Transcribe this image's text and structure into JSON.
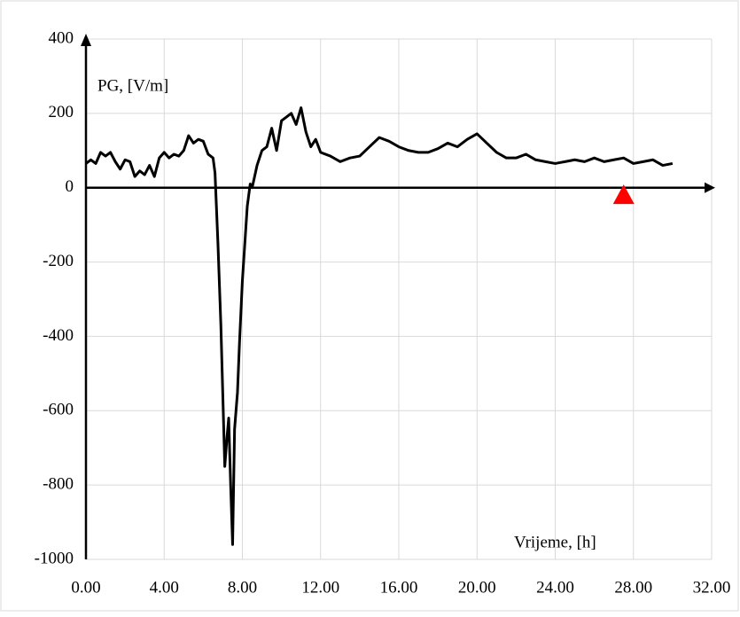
{
  "chart_data": {
    "type": "line",
    "y_label": "PG, [V/m]",
    "x_label": "Vrijeme, [h]",
    "xlim": [
      0,
      32
    ],
    "ylim": [
      -1000,
      400
    ],
    "xticks": [
      {
        "value": 0,
        "label": "0.00"
      },
      {
        "value": 4,
        "label": "4.00"
      },
      {
        "value": 8,
        "label": "8.00"
      },
      {
        "value": 12,
        "label": "12.00"
      },
      {
        "value": 16,
        "label": "16.00"
      },
      {
        "value": 20,
        "label": "20.00"
      },
      {
        "value": 24,
        "label": "24.00"
      },
      {
        "value": 28,
        "label": "28.00"
      },
      {
        "value": 32,
        "label": "32.00"
      }
    ],
    "yticks": [
      400,
      200,
      0,
      -200,
      -400,
      -600,
      -800,
      -1000
    ],
    "grid": true,
    "series": [
      {
        "color": "#000000",
        "x": [
          0,
          0.25,
          0.5,
          0.75,
          1.0,
          1.25,
          1.5,
          1.75,
          2.0,
          2.25,
          2.5,
          2.75,
          3.0,
          3.25,
          3.5,
          3.75,
          4.0,
          4.25,
          4.5,
          4.75,
          5.0,
          5.25,
          5.5,
          5.75,
          6.0,
          6.25,
          6.5,
          6.6,
          6.75,
          6.9,
          7.0,
          7.1,
          7.2,
          7.3,
          7.4,
          7.5,
          7.6,
          7.75,
          7.85,
          8.0,
          8.25,
          8.4,
          8.5,
          8.75,
          9.0,
          9.25,
          9.5,
          9.75,
          10.0,
          10.25,
          10.5,
          10.75,
          11.0,
          11.25,
          11.5,
          11.75,
          12.0,
          12.5,
          13.0,
          13.5,
          14.0,
          14.5,
          15.0,
          15.5,
          16.0,
          16.5,
          17.0,
          17.5,
          18.0,
          18.5,
          19.0,
          19.5,
          20.0,
          20.5,
          21.0,
          21.5,
          22.0,
          22.5,
          23.0,
          23.5,
          24.0,
          24.5,
          25.0,
          25.5,
          26.0,
          26.5,
          27.0,
          27.5,
          28.0,
          28.5,
          29.0,
          29.5,
          30.0
        ],
        "values": [
          65,
          75,
          65,
          95,
          85,
          95,
          70,
          50,
          75,
          70,
          30,
          45,
          35,
          60,
          30,
          80,
          95,
          80,
          90,
          85,
          100,
          140,
          120,
          130,
          125,
          90,
          80,
          40,
          -150,
          -370,
          -560,
          -750,
          -680,
          -620,
          -800,
          -960,
          -650,
          -550,
          -420,
          -250,
          -50,
          10,
          0,
          60,
          100,
          110,
          160,
          100,
          180,
          190,
          200,
          170,
          215,
          150,
          110,
          130,
          95,
          85,
          70,
          80,
          85,
          110,
          135,
          125,
          110,
          100,
          95,
          95,
          105,
          120,
          110,
          130,
          145,
          120,
          95,
          80,
          80,
          90,
          75,
          70,
          65,
          70,
          75,
          70,
          80,
          70,
          75,
          80,
          65,
          70,
          75,
          60,
          65
        ]
      }
    ],
    "marker": {
      "x": 27.5,
      "y": -20,
      "color": "#ff0000"
    }
  }
}
